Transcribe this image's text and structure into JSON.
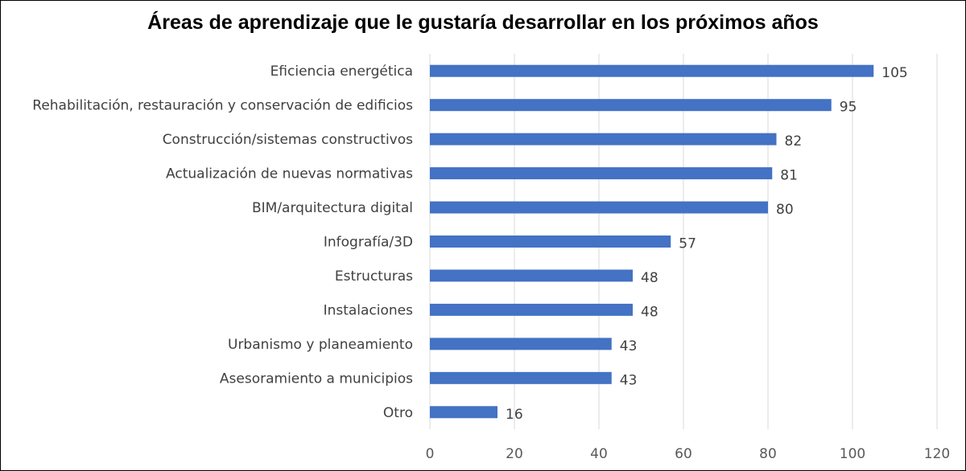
{
  "chart_data": {
    "type": "bar",
    "orientation": "horizontal",
    "title": "Áreas de aprendizaje que le gustaría desarrollar en los próximos años",
    "categories": [
      "Eficiencia energética",
      "Rehabilitación, restauración y conservación de edificios",
      "Construcción/sistemas constructivos",
      "Actualización de nuevas normativas",
      "BIM/arquitectura digital",
      "Infografía/3D",
      "Estructuras",
      "Instalaciones",
      "Urbanismo y planeamiento",
      "Asesoramiento a municipios",
      "Otro"
    ],
    "values": [
      105,
      95,
      82,
      81,
      80,
      57,
      48,
      48,
      43,
      43,
      16
    ],
    "xlim": [
      0,
      120
    ],
    "xticks": [
      "0",
      "20",
      "40",
      "60",
      "80",
      "100",
      "120"
    ],
    "grid": "vertical",
    "data_labels": true,
    "bar_color": "#4472C4"
  }
}
